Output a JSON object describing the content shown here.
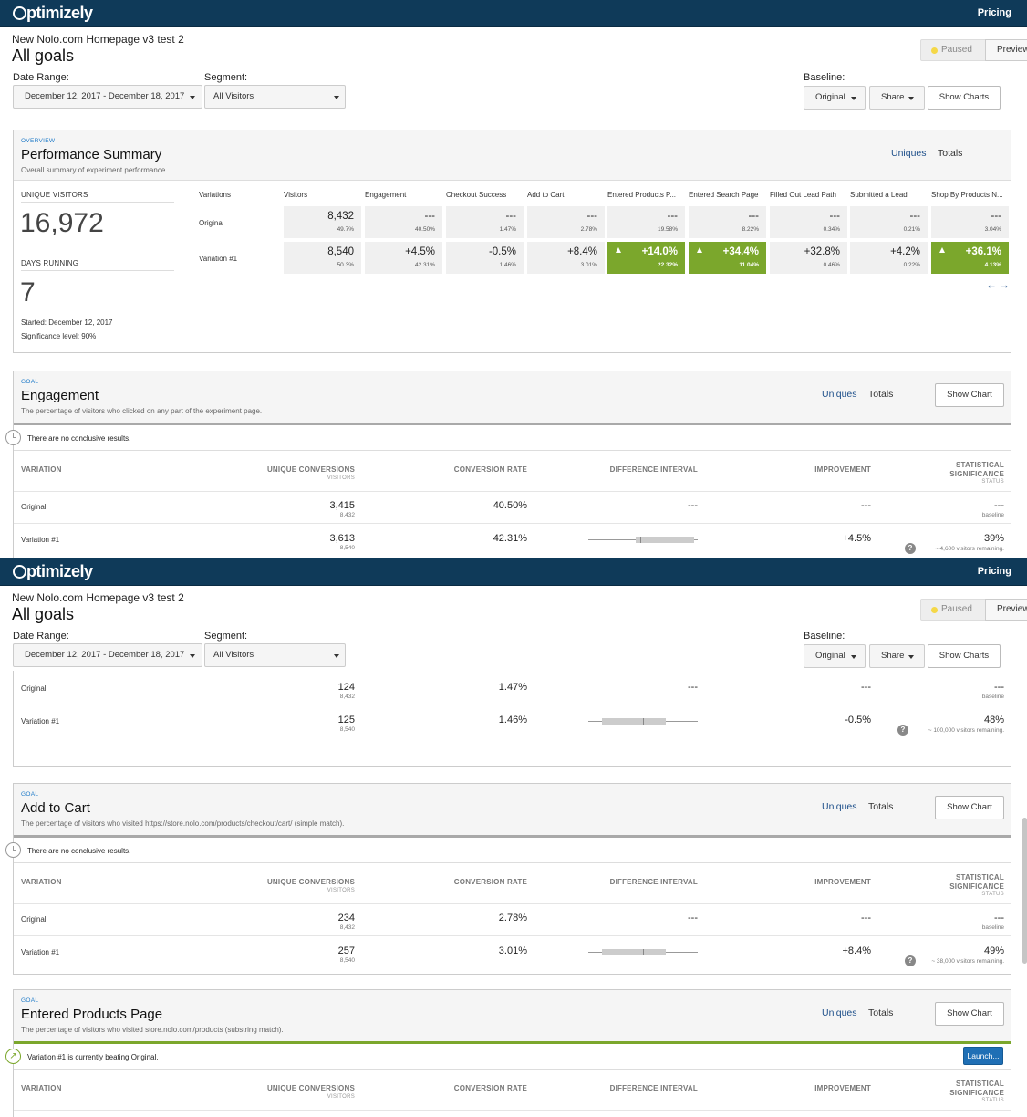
{
  "brand": "Optimizely",
  "brand_rest": "ptimizely",
  "nav": {
    "pricing": "Pricing"
  },
  "experiment": {
    "name": "New Nolo.com Homepage v3 test 2",
    "view_title": "All goals",
    "status": "Paused",
    "preview_label": "Preview"
  },
  "controls": {
    "date_range_label": "Date Range:",
    "date_range_value": "December 12, 2017 - December 18, 2017",
    "segment_label": "Segment:",
    "segment_value": "All Visitors",
    "baseline_label": "Baseline:",
    "baseline_value": "Original",
    "share_label": "Share",
    "show_charts_label": "Show Charts"
  },
  "colors": {
    "topbar": "#0f3a59",
    "win": "#7ba72c",
    "link": "#1d4f8a",
    "status_dot": "#f5d848",
    "launch": "#1f6fb5"
  },
  "summary": {
    "kicker": "OVERVIEW",
    "title": "Performance Summary",
    "desc": "Overall summary of experiment performance.",
    "tab_uniques": "Uniques",
    "tab_totals": "Totals",
    "unique_visitors_label": "UNIQUE VISITORS",
    "unique_visitors_value": "16,972",
    "days_running_label": "DAYS RUNNING",
    "days_running_value": "7",
    "started": "Started: December 12, 2017",
    "significance": "Significance level: 90%",
    "variations_header": "Variations",
    "columns": [
      "Visitors",
      "Engagement",
      "Checkout Success",
      "Add to Cart",
      "Entered Products P...",
      "Entered Search Page",
      "Filled Out Lead Path",
      "Submitted a Lead",
      "Shop By Products N..."
    ],
    "rows": [
      {
        "name": "Original",
        "cells": [
          {
            "v": "8,432",
            "s": "49.7%"
          },
          {
            "v": "---",
            "s": "40.50%"
          },
          {
            "v": "---",
            "s": "1.47%"
          },
          {
            "v": "---",
            "s": "2.78%"
          },
          {
            "v": "---",
            "s": "19.58%"
          },
          {
            "v": "---",
            "s": "8.22%"
          },
          {
            "v": "---",
            "s": "0.34%"
          },
          {
            "v": "---",
            "s": "0.21%"
          },
          {
            "v": "---",
            "s": "3.04%"
          }
        ]
      },
      {
        "name": "Variation #1",
        "cells": [
          {
            "v": "8,540",
            "s": "50.3%"
          },
          {
            "v": "+4.5%",
            "s": "42.31%"
          },
          {
            "v": "-0.5%",
            "s": "1.46%"
          },
          {
            "v": "+8.4%",
            "s": "3.01%"
          },
          {
            "v": "+14.0%",
            "s": "22.32%",
            "win": true
          },
          {
            "v": "+34.4%",
            "s": "11.04%",
            "win": true
          },
          {
            "v": "+32.8%",
            "s": "0.46%"
          },
          {
            "v": "+4.2%",
            "s": "0.22%"
          },
          {
            "v": "+36.1%",
            "s": "4.13%",
            "win": true
          }
        ]
      }
    ]
  },
  "table_headers": {
    "variation": "VARIATION",
    "unique_conversions": "UNIQUE CONVERSIONS",
    "visitors": "VISITORS",
    "conversion_rate": "CONVERSION RATE",
    "difference_interval": "DIFFERENCE INTERVAL",
    "improvement": "IMPROVEMENT",
    "statistical": "STATISTICAL",
    "significance": "SIGNIFICANCE",
    "status": "STATUS"
  },
  "goal_kicker": "GOAL",
  "show_chart_label": "Show Chart",
  "launch_label": "Launch...",
  "engagement": {
    "title": "Engagement",
    "desc": "The percentage of visitors who clicked on any part of the experiment page.",
    "status_text": "There are no conclusive results.",
    "original": {
      "name": "Original",
      "conv": "3,415",
      "visitors": "8,432",
      "rate": "40.50%",
      "interval": "---",
      "improvement": "---",
      "sig": "---",
      "sig_sub": "baseline"
    },
    "variation": {
      "name": "Variation #1",
      "conv": "3,613",
      "visitors": "8,540",
      "rate": "42.31%",
      "improvement": "+4.5%",
      "sig": "39%",
      "remaining": "~ 4,600 visitors remaining."
    }
  },
  "checkout": {
    "original": {
      "name": "Original",
      "conv": "124",
      "visitors": "8,432",
      "rate": "1.47%",
      "interval": "---",
      "improvement": "---",
      "sig": "---",
      "sig_sub": "baseline"
    },
    "variation": {
      "name": "Variation #1",
      "conv": "125",
      "visitors": "8,540",
      "rate": "1.46%",
      "improvement": "-0.5%",
      "sig": "48%",
      "remaining": "~ 100,000 visitors remaining."
    }
  },
  "add_to_cart": {
    "title": "Add to Cart",
    "desc": "The percentage of visitors who visited https://store.nolo.com/products/checkout/cart/ (simple match).",
    "status_text": "There are no conclusive results.",
    "original": {
      "name": "Original",
      "conv": "234",
      "visitors": "8,432",
      "rate": "2.78%",
      "interval": "---",
      "improvement": "---",
      "sig": "---",
      "sig_sub": "baseline"
    },
    "variation": {
      "name": "Variation #1",
      "conv": "257",
      "visitors": "8,540",
      "rate": "3.01%",
      "improvement": "+8.4%",
      "sig": "49%",
      "remaining": "~ 38,000 visitors remaining."
    }
  },
  "entered_products": {
    "title": "Entered Products Page",
    "desc": "The percentage of visitors who visited store.nolo.com/products (substring match).",
    "status_text": "Variation #1 is currently beating Original."
  }
}
